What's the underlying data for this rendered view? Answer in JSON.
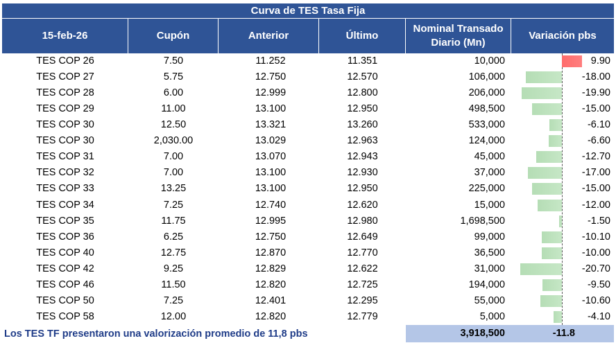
{
  "title": "Curva de TES Tasa Fija",
  "header": [
    "15-feb-26",
    "Cupón",
    "Anterior",
    "Último",
    "Nominal Transado Diario (Mn)",
    "Variación pbs"
  ],
  "rows": [
    {
      "name": "TES COP 26",
      "cupon": "7.50",
      "anterior": "11.252",
      "ultimo": "11.351",
      "nominal": "10,000",
      "variacion": {
        "value": 9.9,
        "label": "9.90"
      }
    },
    {
      "name": "TES COP 27",
      "cupon": "5.75",
      "anterior": "12.750",
      "ultimo": "12.570",
      "nominal": "106,000",
      "variacion": {
        "value": -18,
        "label": "-18.00"
      }
    },
    {
      "name": "TES COP 28",
      "cupon": "6.00",
      "anterior": "12.999",
      "ultimo": "12.800",
      "nominal": "206,000",
      "variacion": {
        "value": -19.9,
        "label": "-19.90"
      }
    },
    {
      "name": "TES COP 29",
      "cupon": "11.00",
      "anterior": "13.100",
      "ultimo": "12.950",
      "nominal": "498,500",
      "variacion": {
        "value": -15,
        "label": "-15.00"
      }
    },
    {
      "name": "TES COP 30",
      "cupon": "12.50",
      "anterior": "13.321",
      "ultimo": "13.260",
      "nominal": "533,000",
      "variacion": {
        "value": -6.1,
        "label": "-6.10"
      }
    },
    {
      "name": "TES COP 30",
      "cupon": "2,030.00",
      "anterior": "13.029",
      "ultimo": "12.963",
      "nominal": "124,000",
      "variacion": {
        "value": -6.6,
        "label": "-6.60"
      }
    },
    {
      "name": "TES COP 31",
      "cupon": "7.00",
      "anterior": "13.070",
      "ultimo": "12.943",
      "nominal": "45,000",
      "variacion": {
        "value": -12.7,
        "label": "-12.70"
      }
    },
    {
      "name": "TES COP 32",
      "cupon": "7.00",
      "anterior": "13.100",
      "ultimo": "12.930",
      "nominal": "37,000",
      "variacion": {
        "value": -17,
        "label": "-17.00"
      }
    },
    {
      "name": "TES COP 33",
      "cupon": "13.25",
      "anterior": "13.100",
      "ultimo": "12.950",
      "nominal": "225,000",
      "variacion": {
        "value": -15,
        "label": "-15.00"
      }
    },
    {
      "name": "TES COP 34",
      "cupon": "7.25",
      "anterior": "12.740",
      "ultimo": "12.620",
      "nominal": "15,000",
      "variacion": {
        "value": -12,
        "label": "-12.00"
      }
    },
    {
      "name": "TES COP 35",
      "cupon": "11.75",
      "anterior": "12.995",
      "ultimo": "12.980",
      "nominal": "1,698,500",
      "variacion": {
        "value": -1.5,
        "label": "-1.50"
      }
    },
    {
      "name": "TES COP 36",
      "cupon": "6.25",
      "anterior": "12.750",
      "ultimo": "12.649",
      "nominal": "99,000",
      "variacion": {
        "value": -10.1,
        "label": "-10.10"
      }
    },
    {
      "name": "TES COP 40",
      "cupon": "12.75",
      "anterior": "12.870",
      "ultimo": "12.770",
      "nominal": "36,500",
      "variacion": {
        "value": -10,
        "label": "-10.00"
      }
    },
    {
      "name": "TES COP 42",
      "cupon": "9.25",
      "anterior": "12.829",
      "ultimo": "12.622",
      "nominal": "31,000",
      "variacion": {
        "value": -20.7,
        "label": "-20.70"
      }
    },
    {
      "name": "TES COP 46",
      "cupon": "11.50",
      "anterior": "12.820",
      "ultimo": "12.725",
      "nominal": "194,000",
      "variacion": {
        "value": -9.5,
        "label": "-9.50"
      }
    },
    {
      "name": "TES COP 50",
      "cupon": "7.25",
      "anterior": "12.401",
      "ultimo": "12.295",
      "nominal": "55,000",
      "variacion": {
        "value": -10.6,
        "label": "-10.60"
      }
    },
    {
      "name": "TES COP 58",
      "cupon": "12.00",
      "anterior": "12.820",
      "ultimo": "12.779",
      "nominal": "5,000",
      "variacion": {
        "value": -4.1,
        "label": "-4.10"
      }
    }
  ],
  "footer": {
    "note": "Los TES TF presentaron una valorización promedio de 11,8 pbs",
    "nominal": "3,918,500",
    "variacion": "-11.8"
  }
}
